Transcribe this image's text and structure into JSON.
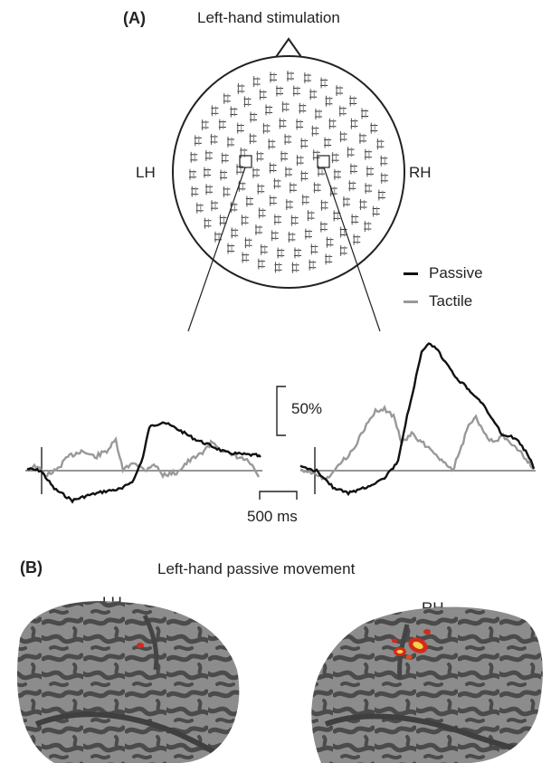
{
  "panel_a": {
    "label": "(A)",
    "title": "Left-hand stimulation",
    "hemi_left": "LH",
    "hemi_right": "RH",
    "legend": [
      {
        "name": "Passive",
        "color": "#111111"
      },
      {
        "name": "Tactile",
        "color": "#999999"
      }
    ],
    "scale_y": "50%",
    "scale_x": "500 ms"
  },
  "panel_b": {
    "label": "(B)",
    "title": "Left-hand passive movement",
    "hemi_left": "LH",
    "hemi_right": "RH"
  },
  "colors": {
    "brain_dark": "#4a4a4a",
    "brain_light": "#8a8a8a",
    "activation_red": "#d42a1a",
    "activation_yellow": "#f7d24a"
  }
}
